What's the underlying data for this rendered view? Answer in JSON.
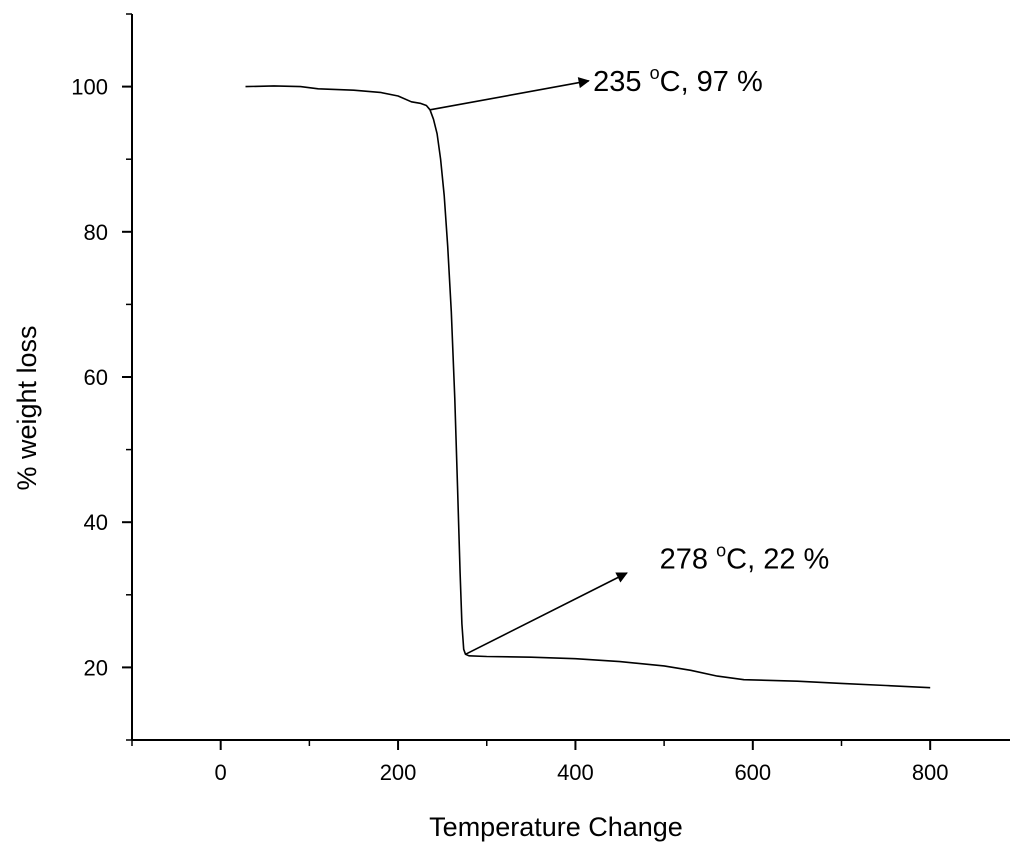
{
  "chart_data": {
    "type": "line",
    "title": "",
    "xlabel": "Temperature Change",
    "ylabel": "% weight loss",
    "xlim": [
      -100,
      890
    ],
    "ylim": [
      10,
      110
    ],
    "x_ticks": [
      0,
      200,
      400,
      600,
      800
    ],
    "y_ticks": [
      20,
      40,
      60,
      80,
      100
    ],
    "grid": false,
    "series": [
      {
        "points": [
          [
            28,
            100.0
          ],
          [
            60,
            100.1
          ],
          [
            90,
            100.0
          ],
          [
            110,
            99.7
          ],
          [
            150,
            99.5
          ],
          [
            180,
            99.2
          ],
          [
            200,
            98.7
          ],
          [
            215,
            97.9
          ],
          [
            225,
            97.7
          ],
          [
            232,
            97.4
          ],
          [
            236,
            96.8
          ],
          [
            240,
            95.5
          ],
          [
            244,
            93.5
          ],
          [
            248,
            90.0
          ],
          [
            252,
            85.0
          ],
          [
            256,
            78.0
          ],
          [
            260,
            69.0
          ],
          [
            264,
            57.0
          ],
          [
            267,
            45.0
          ],
          [
            270,
            33.0
          ],
          [
            272,
            26.0
          ],
          [
            274,
            22.5
          ],
          [
            276,
            21.8
          ],
          [
            280,
            21.6
          ],
          [
            300,
            21.5
          ],
          [
            350,
            21.4
          ],
          [
            400,
            21.2
          ],
          [
            450,
            20.8
          ],
          [
            500,
            20.2
          ],
          [
            530,
            19.6
          ],
          [
            560,
            18.8
          ],
          [
            590,
            18.3
          ],
          [
            650,
            18.1
          ],
          [
            700,
            17.8
          ],
          [
            750,
            17.5
          ],
          [
            800,
            17.2
          ]
        ]
      }
    ],
    "annotations": [
      {
        "label": "235",
        "sup": "o",
        "suffix": "C, 97 %",
        "point": [
          236,
          96.8
        ],
        "arrow_to": [
          415,
          100.8
        ],
        "text_at": [
          420,
          100.8
        ]
      },
      {
        "label": "278",
        "sup": "o",
        "suffix": "C, 22 %",
        "point": [
          276,
          21.8
        ],
        "arrow_to": [
          458,
          33.0
        ],
        "text_at": [
          495,
          35.0
        ]
      }
    ]
  }
}
